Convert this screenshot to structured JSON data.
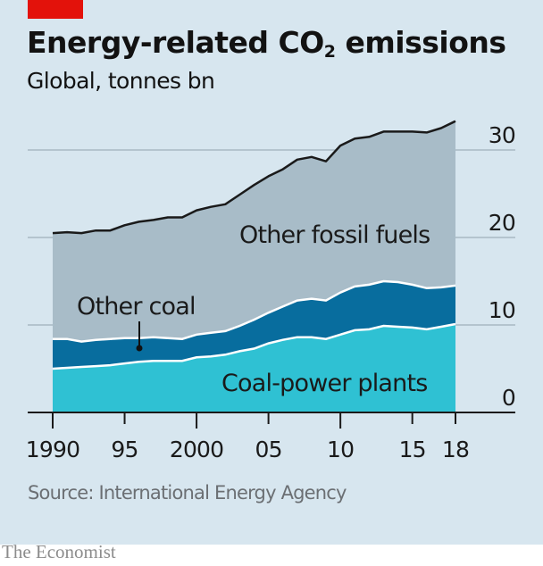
{
  "header": {
    "title_pre": "Energy-related CO",
    "title_sub": "2",
    "title_post": " emissions",
    "subtitle": "Global, tonnes bn"
  },
  "footer": {
    "source": "Source: International Energy Agency",
    "brand": "The Economist"
  },
  "colors": {
    "background": "#d7e6ef",
    "brand_red": "#e3120b",
    "other_fossil_fuels": "#a8bcc8",
    "other_coal": "#086d9e",
    "coal_power_plants": "#2fc1d3",
    "total_line": "#1a1a1a"
  },
  "chart_data": {
    "type": "area",
    "stacked": true,
    "title": "Energy-related CO2 emissions",
    "subtitle": "Global, tonnes bn",
    "xlabel": "",
    "ylabel": "",
    "x": [
      1990,
      1991,
      1992,
      1993,
      1994,
      1995,
      1996,
      1997,
      1998,
      1999,
      2000,
      2001,
      2002,
      2003,
      2004,
      2005,
      2006,
      2007,
      2008,
      2009,
      2010,
      2011,
      2012,
      2013,
      2014,
      2015,
      2016,
      2017,
      2018
    ],
    "xlim": [
      1990,
      2018
    ],
    "ylim": [
      0,
      30
    ],
    "x_ticks": [
      1990,
      1995,
      2000,
      2005,
      2010,
      2015,
      2018
    ],
    "x_tick_labels": [
      "1990",
      "95",
      "2000",
      "05",
      "10",
      "15",
      "18"
    ],
    "y_ticks": [
      0,
      10,
      20,
      30
    ],
    "y_tick_labels": [
      "0",
      "10",
      "20",
      "30"
    ],
    "y_axis_position": "right",
    "grid": true,
    "series": [
      {
        "name": "Coal-power plants",
        "values": [
          5.0,
          5.1,
          5.2,
          5.3,
          5.4,
          5.6,
          5.8,
          5.9,
          5.9,
          5.9,
          6.3,
          6.4,
          6.6,
          7.0,
          7.3,
          7.9,
          8.3,
          8.6,
          8.6,
          8.4,
          8.9,
          9.4,
          9.5,
          9.9,
          9.8,
          9.7,
          9.5,
          9.8,
          10.1
        ]
      },
      {
        "name": "Other coal",
        "values": [
          3.4,
          3.3,
          2.9,
          3.0,
          3.0,
          2.9,
          2.7,
          2.7,
          2.6,
          2.5,
          2.6,
          2.7,
          2.7,
          2.9,
          3.3,
          3.5,
          3.8,
          4.2,
          4.4,
          4.4,
          4.8,
          5.0,
          5.1,
          5.1,
          5.1,
          4.9,
          4.7,
          4.5,
          4.4
        ]
      },
      {
        "name": "Other fossil fuels",
        "values": [
          12.1,
          12.2,
          12.4,
          12.5,
          12.4,
          12.9,
          13.3,
          13.4,
          13.8,
          13.9,
          14.2,
          14.4,
          14.5,
          15.0,
          15.4,
          15.6,
          15.7,
          16.1,
          16.2,
          15.9,
          16.8,
          16.9,
          16.9,
          17.1,
          17.2,
          17.5,
          17.8,
          18.2,
          18.8
        ]
      }
    ],
    "totals": [
      20.5,
      20.6,
      20.5,
      20.8,
      20.8,
      21.4,
      21.8,
      22.0,
      22.3,
      22.3,
      23.1,
      23.5,
      23.8,
      24.9,
      26.0,
      27.0,
      27.8,
      28.9,
      29.2,
      28.7,
      30.5,
      31.3,
      31.5,
      32.1,
      32.1,
      32.1,
      32.0,
      32.5,
      33.3
    ],
    "annotations": [
      {
        "text": "Other fossil fuels",
        "series": "Other fossil fuels"
      },
      {
        "text": "Other coal",
        "series": "Other coal",
        "pointer": true
      },
      {
        "text": "Coal-power plants",
        "series": "Coal-power plants"
      }
    ],
    "legend": "inline labels"
  }
}
